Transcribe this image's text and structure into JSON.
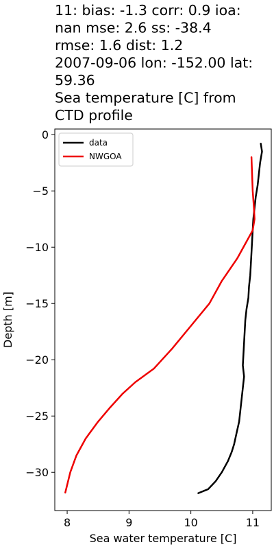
{
  "chart_data": {
    "type": "line",
    "title_lines": [
      "11: bias: -1.3  corr: 0.9  ioa:",
      "nan  mse: 2.6  ss: -38.4",
      "rmse: 1.6  dist: 1.2",
      "2007-09-06 lon: -152.00 lat:",
      "59.36",
      "Sea temperature [C] from",
      "CTD profile"
    ],
    "xlabel": "Sea water temperature [C]",
    "ylabel": "Depth [m]",
    "xlim": [
      7.8,
      11.3
    ],
    "ylim": [
      -33.4,
      0.5
    ],
    "xticks": [
      8,
      9,
      10,
      11
    ],
    "yticks": [
      0,
      -5,
      -10,
      -15,
      -20,
      -25,
      -30
    ],
    "xtick_labels": [
      "8",
      "9",
      "10",
      "11"
    ],
    "ytick_labels": [
      "0",
      "−5",
      "−10",
      "−15",
      "−20",
      "−25",
      "−30"
    ],
    "legend_position": "upper-left",
    "grid": false,
    "series": [
      {
        "name": "data",
        "color": "#000000",
        "points": [
          [
            11.13,
            -0.8
          ],
          [
            11.15,
            -1.5
          ],
          [
            11.12,
            -2.5
          ],
          [
            11.1,
            -3.5
          ],
          [
            11.08,
            -4.5
          ],
          [
            11.05,
            -5.5
          ],
          [
            11.03,
            -6.5
          ],
          [
            11.01,
            -7.5
          ],
          [
            11.0,
            -8.5
          ],
          [
            10.99,
            -9.5
          ],
          [
            10.98,
            -10.5
          ],
          [
            10.97,
            -11.5
          ],
          [
            10.96,
            -12.5
          ],
          [
            10.94,
            -13.5
          ],
          [
            10.93,
            -14.5
          ],
          [
            10.9,
            -15.5
          ],
          [
            10.88,
            -16.5
          ],
          [
            10.87,
            -17.5
          ],
          [
            10.86,
            -18.5
          ],
          [
            10.85,
            -19.5
          ],
          [
            10.84,
            -20.5
          ],
          [
            10.86,
            -21.5
          ],
          [
            10.84,
            -22.5
          ],
          [
            10.82,
            -23.5
          ],
          [
            10.8,
            -24.5
          ],
          [
            10.78,
            -25.5
          ],
          [
            10.74,
            -26.5
          ],
          [
            10.7,
            -27.5
          ],
          [
            10.66,
            -28.2
          ],
          [
            10.6,
            -29.0
          ],
          [
            10.5,
            -30.0
          ],
          [
            10.4,
            -30.8
          ],
          [
            10.28,
            -31.5
          ],
          [
            10.12,
            -31.85
          ]
        ]
      },
      {
        "name": "NWGOA",
        "color": "#ee0000",
        "points": [
          [
            10.98,
            -2.0
          ],
          [
            10.99,
            -3.5
          ],
          [
            11.0,
            -5.0
          ],
          [
            11.02,
            -6.5
          ],
          [
            11.03,
            -7.5
          ],
          [
            11.0,
            -8.5
          ],
          [
            10.9,
            -9.5
          ],
          [
            10.75,
            -11.0
          ],
          [
            10.5,
            -13.0
          ],
          [
            10.3,
            -15.0
          ],
          [
            10.0,
            -17.0
          ],
          [
            9.7,
            -19.0
          ],
          [
            9.4,
            -20.8
          ],
          [
            9.1,
            -22.0
          ],
          [
            8.9,
            -23.0
          ],
          [
            8.7,
            -24.2
          ],
          [
            8.5,
            -25.5
          ],
          [
            8.3,
            -27.0
          ],
          [
            8.15,
            -28.5
          ],
          [
            8.05,
            -30.0
          ],
          [
            7.97,
            -31.8
          ]
        ]
      }
    ]
  }
}
